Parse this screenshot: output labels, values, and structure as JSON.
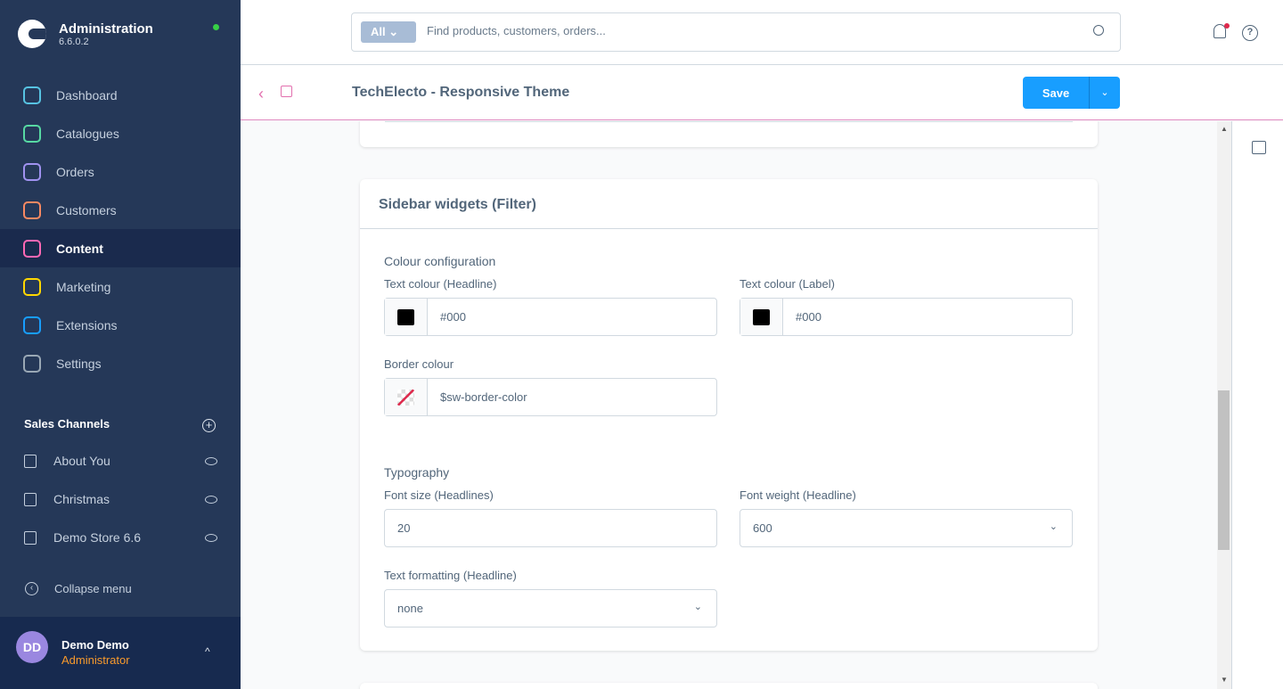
{
  "app": {
    "title": "Administration",
    "version": "6.6.0.2",
    "status_color": "#37d046"
  },
  "nav": [
    {
      "label": "Dashboard",
      "icon": "dashboard-icon",
      "color": "#57c3e2"
    },
    {
      "label": "Catalogues",
      "icon": "catalogues-icon",
      "color": "#57d9a3"
    },
    {
      "label": "Orders",
      "icon": "orders-icon",
      "color": "#a092f0"
    },
    {
      "label": "Customers",
      "icon": "customers-icon",
      "color": "#f88962"
    },
    {
      "label": "Content",
      "icon": "content-icon",
      "color": "#ff68b4",
      "active": true
    },
    {
      "label": "Marketing",
      "icon": "marketing-icon",
      "color": "#ffd700"
    },
    {
      "label": "Extensions",
      "icon": "extensions-icon",
      "color": "#189eff"
    },
    {
      "label": "Settings",
      "icon": "settings-icon",
      "color": "#9aa8b5"
    }
  ],
  "sales_channels": {
    "heading": "Sales Channels",
    "items": [
      {
        "label": "About You"
      },
      {
        "label": "Christmas"
      },
      {
        "label": "Demo Store 6.6"
      }
    ]
  },
  "collapse_label": "Collapse menu",
  "user": {
    "initials": "DD",
    "name": "Demo Demo",
    "role": "Administrator"
  },
  "search": {
    "filter": "All",
    "placeholder": "Find products, customers, orders..."
  },
  "page": {
    "title": "TechElecto - Responsive Theme",
    "save_label": "Save"
  },
  "card": {
    "title": "Sidebar widgets (Filter)",
    "colour_section": "Colour configuration",
    "text_headline": {
      "label": "Text colour (Headline)",
      "value": "#000"
    },
    "text_label": {
      "label": "Text colour (Label)",
      "value": "#000"
    },
    "border": {
      "label": "Border colour",
      "value": "$sw-border-color"
    },
    "typography_section": "Typography",
    "font_size": {
      "label": "Font size (Headlines)",
      "value": "20"
    },
    "font_weight": {
      "label": "Font weight (Headline)",
      "value": "600"
    },
    "text_formatting": {
      "label": "Text formatting (Headline)",
      "value": "none"
    }
  }
}
